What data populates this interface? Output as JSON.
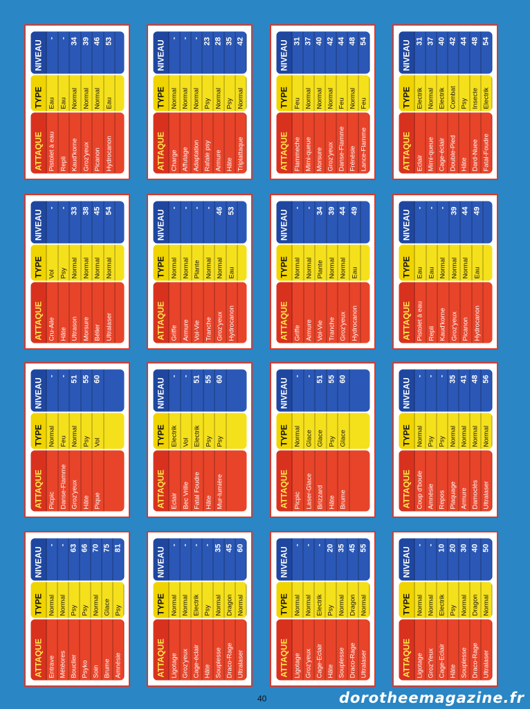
{
  "columns": [
    "ATTAQUE",
    "TYPE",
    "NIVEAU"
  ],
  "cards": [
    {
      "rows": [
        [
          "Pistolet à eau",
          "Eau",
          "-"
        ],
        [
          "Repli",
          "Eau",
          "-"
        ],
        [
          "Kaud'korne",
          "Normal",
          "34"
        ],
        [
          "Groz'yeux",
          "Normal",
          "39"
        ],
        [
          "Picanon",
          "Normal",
          "46"
        ],
        [
          "Hydrocanon",
          "Eau",
          "53"
        ]
      ]
    },
    {
      "rows": [
        [
          "Charge",
          "Normal",
          "-"
        ],
        [
          "Affutage",
          "Normal",
          "-"
        ],
        [
          "Adaptation",
          "Normal",
          "-"
        ],
        [
          "Rafale psy",
          "Psy",
          "23"
        ],
        [
          "Armure",
          "Normal",
          "28"
        ],
        [
          "Hâte",
          "Psy",
          "35"
        ],
        [
          "Triplattaque",
          "Normal",
          "42"
        ]
      ]
    },
    {
      "rows": [
        [
          "Flammeche",
          "Feu",
          "31"
        ],
        [
          "Mimi-queue",
          "Normal",
          "37"
        ],
        [
          "Morsure",
          "Normal",
          "40"
        ],
        [
          "Groz'yeux",
          "Normal",
          "42"
        ],
        [
          "Danse-Flamme",
          "Feu",
          "44"
        ],
        [
          "Frénésie",
          "Normal",
          "48"
        ],
        [
          "Lance-Flamme",
          "Feu",
          "54"
        ]
      ]
    },
    {
      "rows": [
        [
          "Eclair",
          "Electrik",
          "31"
        ],
        [
          "Mimi-queue",
          "Normal",
          "37"
        ],
        [
          "Cage-éclair",
          "Electrik",
          "40"
        ],
        [
          "Double-Pied",
          "Combat",
          "42"
        ],
        [
          "Hâte",
          "Psy",
          "44"
        ],
        [
          "Dard-Nuee",
          "Insecte",
          "48"
        ],
        [
          "Fatal-Foudre",
          "Electrik",
          "54"
        ]
      ]
    },
    {
      "rows": [
        [
          "Cru-Aile",
          "Vol",
          "-"
        ],
        [
          "Hâte",
          "Psy",
          "-"
        ],
        [
          "Ultrason",
          "Normal",
          "33"
        ],
        [
          "Morsure",
          "Normal",
          "38"
        ],
        [
          "Bélier",
          "Normal",
          "45"
        ],
        [
          "Ultralaser",
          "Normal",
          "54"
        ]
      ]
    },
    {
      "rows": [
        [
          "Griffe",
          "Normal",
          "-"
        ],
        [
          "Armure",
          "Normal",
          "-"
        ],
        [
          "Vol-Vie",
          "Plante",
          "-"
        ],
        [
          "Tranche",
          "Normal",
          "-"
        ],
        [
          "Groz'yeux",
          "Normal",
          "46"
        ],
        [
          "Hydrocanon",
          "Eau",
          "53"
        ]
      ]
    },
    {
      "rows": [
        [
          "Griffe",
          "Normal",
          "-"
        ],
        [
          "Armure",
          "Normal",
          "-"
        ],
        [
          "Vol-Vie",
          "Plante",
          "34"
        ],
        [
          "Tranche",
          "Normal",
          "39"
        ],
        [
          "Groz'yeux",
          "Normal",
          "44"
        ],
        [
          "Hydrocanon",
          "Eau",
          "49"
        ]
      ]
    },
    {
      "rows": [
        [
          "Pistolet à eau",
          "Eau",
          "-"
        ],
        [
          "Repli",
          "Eau",
          "-"
        ],
        [
          "Kaud'korne",
          "Normal",
          "-"
        ],
        [
          "Groz'yeux",
          "Normal",
          "39"
        ],
        [
          "Picanon",
          "Normal",
          "44"
        ],
        [
          "Hydrocanon",
          "Eau",
          "49"
        ]
      ]
    },
    {
      "rows": [
        [
          "Picpic",
          "Normal",
          "-"
        ],
        [
          "Danse-Flamme",
          "Feu",
          "-"
        ],
        [
          "Groz'yeux",
          "Normal",
          "51"
        ],
        [
          "Hâte",
          "Psy",
          "55"
        ],
        [
          "Pique",
          "Vol",
          "60"
        ]
      ]
    },
    {
      "rows": [
        [
          "Eclair",
          "Electrik",
          "-"
        ],
        [
          "Bec Vrille",
          "Vol",
          "-"
        ],
        [
          "Fatal Foudre",
          "Electrik",
          "51"
        ],
        [
          "Hâte",
          "Psy",
          "55"
        ],
        [
          "Mur-lumière",
          "Psy",
          "60"
        ]
      ]
    },
    {
      "rows": [
        [
          "Picpic",
          "Normal",
          "-"
        ],
        [
          "Laser-Glace",
          "Glace",
          "-"
        ],
        [
          "Brizzard",
          "Glace",
          "51"
        ],
        [
          "Hâte",
          "Psy",
          "55"
        ],
        [
          "Brume",
          "Glace",
          "60"
        ]
      ]
    },
    {
      "rows": [
        [
          "Coup d'boule",
          "Normal",
          "-"
        ],
        [
          "Amnésie",
          "Psy",
          "-"
        ],
        [
          "Repos",
          "Psy",
          "-"
        ],
        [
          "Plaquage",
          "Normal",
          "35"
        ],
        [
          "Armure",
          "Normal",
          "41"
        ],
        [
          "Damoclès",
          "Normal",
          "48"
        ],
        [
          "Ultralaser",
          "Normal",
          "56"
        ]
      ]
    },
    {
      "rows": [
        [
          "Entrave",
          "Normal",
          "-"
        ],
        [
          "Météores",
          "Normal",
          "-"
        ],
        [
          "Bouclier",
          "Psy",
          "63"
        ],
        [
          "Psyko",
          "Psy",
          "66"
        ],
        [
          "Soin",
          "Normal",
          "70"
        ],
        [
          "Brume",
          "Glace",
          "75"
        ],
        [
          "Amnésie",
          "Psy",
          "81"
        ]
      ]
    },
    {
      "rows": [
        [
          "Ligotage",
          "Normal",
          "-"
        ],
        [
          "Groz'yeux",
          "Normal",
          "-"
        ],
        [
          "Cage-éclair",
          "Electrik",
          "-"
        ],
        [
          "Hâte",
          "Psy",
          "-"
        ],
        [
          "Souplesse",
          "Normal",
          "35"
        ],
        [
          "Draco-Rage",
          "Dragon",
          "45"
        ],
        [
          "Ultralaser",
          "Normal",
          "60"
        ]
      ]
    },
    {
      "rows": [
        [
          "Ligotage",
          "Normal",
          "-"
        ],
        [
          "Groz'yeux",
          "Normal",
          "-"
        ],
        [
          "Cage-Eclair",
          "Electrik",
          "-"
        ],
        [
          "Hâte",
          "Psy",
          "20"
        ],
        [
          "Souplesse",
          "Normal",
          "35"
        ],
        [
          "Draco-Rage",
          "Dragon",
          "45"
        ],
        [
          "Ultralaser",
          "Normal",
          "55"
        ]
      ]
    },
    {
      "rows": [
        [
          "Ligotage",
          "Normal",
          "-"
        ],
        [
          "Groz'Yeux",
          "Normal",
          "-"
        ],
        [
          "Cage-Eclair",
          "Electrik",
          "10"
        ],
        [
          "Hâte",
          "Psy",
          "20"
        ],
        [
          "Souplesse",
          "Normal",
          "30"
        ],
        [
          "Draco-Rage",
          "Dragon",
          "40"
        ],
        [
          "Ultralaser",
          "Normal",
          "50"
        ]
      ]
    }
  ],
  "page_number": "40",
  "watermark": "dorotheemagazine.fr"
}
